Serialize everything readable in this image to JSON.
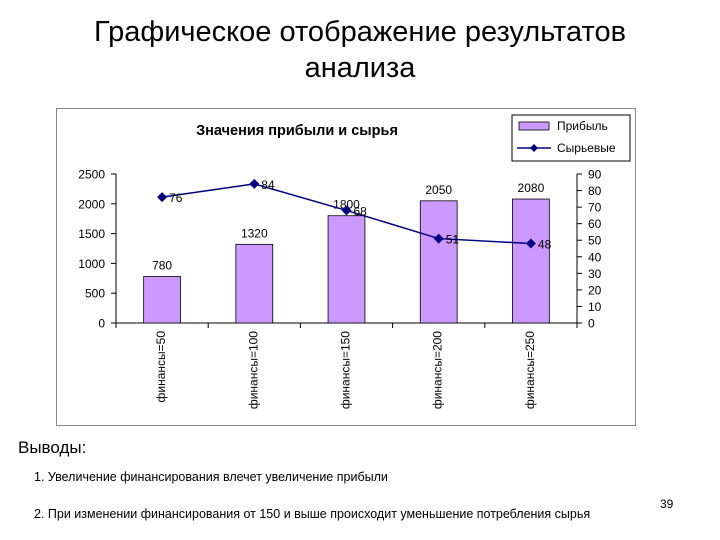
{
  "slide": {
    "title_line1": "Графическое отображение результатов",
    "title_line2": "анализа",
    "conclusions_heading": "Выводы:",
    "conclusions": [
      "1. Увеличение финансирования влечет увеличение прибыли",
      "2. При изменении финансирования от 150 и выше происходит уменьшение потребления сырья"
    ],
    "page_number": "39"
  },
  "chart_data": {
    "type": "bar",
    "title": "Значения прибыли и сырья",
    "categories": [
      "финансы=50",
      "финансы=100",
      "финансы=150",
      "финансы=200",
      "финансы=250"
    ],
    "series": [
      {
        "name": "Прибыль",
        "type": "bar",
        "axis": "left",
        "values": [
          780,
          1320,
          1800,
          2050,
          2080
        ],
        "labels": [
          "780",
          "1320",
          "1800",
          "2050",
          "2080"
        ],
        "color": "#cc99ff"
      },
      {
        "name": "Сырьевые",
        "type": "line",
        "axis": "right",
        "values": [
          76,
          84,
          68,
          51,
          48
        ],
        "labels": [
          "76",
          "84",
          "68",
          "51",
          "48"
        ],
        "color": "#000080"
      }
    ],
    "y_left": {
      "min": 0,
      "max": 2500,
      "ticks": [
        "0",
        "500",
        "1000",
        "1500",
        "2000",
        "2500"
      ]
    },
    "y_right": {
      "min": 0,
      "max": 90,
      "ticks": [
        "0",
        "10",
        "20",
        "30",
        "40",
        "50",
        "60",
        "70",
        "80",
        "90"
      ]
    },
    "legend_position": "top-right",
    "grid": false
  }
}
